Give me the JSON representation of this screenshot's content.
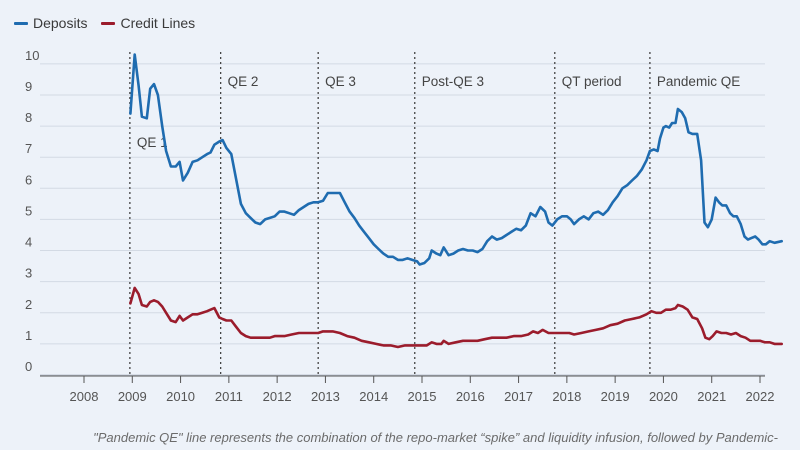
{
  "chart_data": {
    "type": "line",
    "title": "",
    "xlabel": "",
    "ylabel": "",
    "xlim": [
      2007.2,
      2022.2
    ],
    "ylim": [
      0,
      10.4
    ],
    "x_ticks": [
      2008,
      2009,
      2010,
      2011,
      2012,
      2013,
      2014,
      2015,
      2016,
      2017,
      2018,
      2019,
      2020,
      2021,
      2022
    ],
    "x_tick_labels": [
      "2008",
      "2009",
      "2010",
      "2011",
      "2012",
      "2013",
      "2014",
      "2015",
      "2016",
      "2017",
      "2018",
      "2019",
      "2020",
      "2021",
      "2022"
    ],
    "y_ticks": [
      0,
      1,
      2,
      3,
      4,
      5,
      6,
      7,
      8,
      9,
      10
    ],
    "y_tick_labels": [
      "0",
      "1",
      "2",
      "3",
      "4",
      "5",
      "6",
      "7",
      "8",
      "9",
      "10"
    ],
    "grid": "horizontal",
    "series": [
      {
        "name": "Deposits",
        "color": "#1f6cb0",
        "points": [
          [
            2008.96,
            8.4
          ],
          [
            2009.05,
            10.3
          ],
          [
            2009.13,
            9.3
          ],
          [
            2009.2,
            8.3
          ],
          [
            2009.3,
            8.25
          ],
          [
            2009.37,
            9.2
          ],
          [
            2009.45,
            9.35
          ],
          [
            2009.53,
            9.0
          ],
          [
            2009.62,
            8.0
          ],
          [
            2009.7,
            7.2
          ],
          [
            2009.8,
            6.7
          ],
          [
            2009.9,
            6.7
          ],
          [
            2009.98,
            6.85
          ],
          [
            2010.05,
            6.25
          ],
          [
            2010.15,
            6.5
          ],
          [
            2010.25,
            6.85
          ],
          [
            2010.35,
            6.9
          ],
          [
            2010.45,
            7.0
          ],
          [
            2010.55,
            7.1
          ],
          [
            2010.62,
            7.15
          ],
          [
            2010.7,
            7.4
          ],
          [
            2010.8,
            7.5
          ],
          [
            2010.87,
            7.55
          ],
          [
            2010.95,
            7.3
          ],
          [
            2011.05,
            7.1
          ],
          [
            2011.15,
            6.3
          ],
          [
            2011.25,
            5.5
          ],
          [
            2011.35,
            5.2
          ],
          [
            2011.45,
            5.05
          ],
          [
            2011.55,
            4.9
          ],
          [
            2011.65,
            4.85
          ],
          [
            2011.75,
            5.0
          ],
          [
            2011.85,
            5.05
          ],
          [
            2011.95,
            5.1
          ],
          [
            2012.05,
            5.25
          ],
          [
            2012.15,
            5.25
          ],
          [
            2012.25,
            5.2
          ],
          [
            2012.35,
            5.15
          ],
          [
            2012.45,
            5.3
          ],
          [
            2012.55,
            5.4
          ],
          [
            2012.65,
            5.5
          ],
          [
            2012.75,
            5.55
          ],
          [
            2012.85,
            5.55
          ],
          [
            2012.95,
            5.6
          ],
          [
            2013.05,
            5.85
          ],
          [
            2013.15,
            5.85
          ],
          [
            2013.3,
            5.85
          ],
          [
            2013.4,
            5.55
          ],
          [
            2013.5,
            5.25
          ],
          [
            2013.6,
            5.05
          ],
          [
            2013.7,
            4.8
          ],
          [
            2013.8,
            4.6
          ],
          [
            2013.9,
            4.4
          ],
          [
            2014.0,
            4.2
          ],
          [
            2014.1,
            4.05
          ],
          [
            2014.2,
            3.9
          ],
          [
            2014.3,
            3.8
          ],
          [
            2014.4,
            3.8
          ],
          [
            2014.5,
            3.7
          ],
          [
            2014.6,
            3.7
          ],
          [
            2014.7,
            3.75
          ],
          [
            2014.8,
            3.7
          ],
          [
            2014.9,
            3.65
          ],
          [
            2014.95,
            3.55
          ],
          [
            2015.05,
            3.6
          ],
          [
            2015.15,
            3.75
          ],
          [
            2015.2,
            4.0
          ],
          [
            2015.3,
            3.9
          ],
          [
            2015.38,
            3.85
          ],
          [
            2015.45,
            4.1
          ],
          [
            2015.55,
            3.85
          ],
          [
            2015.65,
            3.9
          ],
          [
            2015.75,
            4.0
          ],
          [
            2015.85,
            4.05
          ],
          [
            2015.95,
            4.0
          ],
          [
            2016.05,
            4.0
          ],
          [
            2016.15,
            3.95
          ],
          [
            2016.25,
            4.05
          ],
          [
            2016.35,
            4.3
          ],
          [
            2016.45,
            4.45
          ],
          [
            2016.55,
            4.35
          ],
          [
            2016.65,
            4.4
          ],
          [
            2016.75,
            4.5
          ],
          [
            2016.85,
            4.6
          ],
          [
            2016.95,
            4.7
          ],
          [
            2017.05,
            4.65
          ],
          [
            2017.15,
            4.8
          ],
          [
            2017.25,
            5.2
          ],
          [
            2017.35,
            5.1
          ],
          [
            2017.45,
            5.4
          ],
          [
            2017.55,
            5.25
          ],
          [
            2017.62,
            4.9
          ],
          [
            2017.7,
            4.8
          ],
          [
            2017.8,
            5.0
          ],
          [
            2017.9,
            5.1
          ],
          [
            2018.0,
            5.1
          ],
          [
            2018.08,
            5.0
          ],
          [
            2018.15,
            4.85
          ],
          [
            2018.25,
            5.0
          ],
          [
            2018.35,
            5.1
          ],
          [
            2018.45,
            5.0
          ],
          [
            2018.55,
            5.2
          ],
          [
            2018.65,
            5.25
          ],
          [
            2018.75,
            5.15
          ],
          [
            2018.85,
            5.3
          ],
          [
            2018.95,
            5.55
          ],
          [
            2019.05,
            5.75
          ],
          [
            2019.15,
            6.0
          ],
          [
            2019.25,
            6.1
          ],
          [
            2019.35,
            6.25
          ],
          [
            2019.45,
            6.4
          ],
          [
            2019.55,
            6.6
          ],
          [
            2019.65,
            6.9
          ],
          [
            2019.72,
            7.2
          ],
          [
            2019.8,
            7.25
          ],
          [
            2019.88,
            7.2
          ],
          [
            2019.93,
            7.6
          ],
          [
            2020.0,
            7.95
          ],
          [
            2020.05,
            8.0
          ],
          [
            2020.12,
            7.95
          ],
          [
            2020.18,
            8.1
          ],
          [
            2020.25,
            8.1
          ],
          [
            2020.3,
            8.55
          ],
          [
            2020.38,
            8.45
          ],
          [
            2020.45,
            8.25
          ],
          [
            2020.52,
            7.8
          ],
          [
            2020.6,
            7.75
          ],
          [
            2020.7,
            7.75
          ],
          [
            2020.78,
            6.9
          ],
          [
            2020.85,
            4.9
          ],
          [
            2020.92,
            4.75
          ],
          [
            2021.0,
            5.0
          ],
          [
            2021.08,
            5.7
          ],
          [
            2021.15,
            5.55
          ],
          [
            2021.22,
            5.45
          ],
          [
            2021.3,
            5.45
          ],
          [
            2021.38,
            5.2
          ],
          [
            2021.45,
            5.1
          ],
          [
            2021.52,
            5.1
          ],
          [
            2021.6,
            4.85
          ],
          [
            2021.68,
            4.45
          ],
          [
            2021.75,
            4.35
          ],
          [
            2021.82,
            4.4
          ],
          [
            2021.9,
            4.45
          ],
          [
            2021.97,
            4.35
          ],
          [
            2022.05,
            4.2
          ],
          [
            2022.12,
            4.2
          ],
          [
            2022.2,
            4.3
          ],
          [
            2022.3,
            4.25
          ],
          [
            2022.45,
            4.3
          ]
        ]
      },
      {
        "name": "Credit Lines",
        "color": "#9b1c2c",
        "points": [
          [
            2008.96,
            2.3
          ],
          [
            2009.05,
            2.8
          ],
          [
            2009.13,
            2.6
          ],
          [
            2009.2,
            2.25
          ],
          [
            2009.3,
            2.2
          ],
          [
            2009.37,
            2.35
          ],
          [
            2009.45,
            2.4
          ],
          [
            2009.53,
            2.35
          ],
          [
            2009.62,
            2.2
          ],
          [
            2009.7,
            2.0
          ],
          [
            2009.8,
            1.75
          ],
          [
            2009.9,
            1.7
          ],
          [
            2009.98,
            1.9
          ],
          [
            2010.05,
            1.75
          ],
          [
            2010.15,
            1.85
          ],
          [
            2010.25,
            1.95
          ],
          [
            2010.35,
            1.95
          ],
          [
            2010.45,
            2.0
          ],
          [
            2010.55,
            2.05
          ],
          [
            2010.62,
            2.1
          ],
          [
            2010.7,
            2.15
          ],
          [
            2010.8,
            1.85
          ],
          [
            2010.87,
            1.8
          ],
          [
            2010.95,
            1.75
          ],
          [
            2011.05,
            1.75
          ],
          [
            2011.15,
            1.55
          ],
          [
            2011.25,
            1.35
          ],
          [
            2011.35,
            1.25
          ],
          [
            2011.45,
            1.2
          ],
          [
            2011.55,
            1.2
          ],
          [
            2011.65,
            1.2
          ],
          [
            2011.75,
            1.2
          ],
          [
            2011.85,
            1.2
          ],
          [
            2011.95,
            1.25
          ],
          [
            2012.05,
            1.25
          ],
          [
            2012.15,
            1.25
          ],
          [
            2012.3,
            1.3
          ],
          [
            2012.45,
            1.35
          ],
          [
            2012.6,
            1.35
          ],
          [
            2012.75,
            1.35
          ],
          [
            2012.85,
            1.35
          ],
          [
            2012.95,
            1.4
          ],
          [
            2013.05,
            1.4
          ],
          [
            2013.15,
            1.4
          ],
          [
            2013.3,
            1.35
          ],
          [
            2013.45,
            1.25
          ],
          [
            2013.6,
            1.2
          ],
          [
            2013.75,
            1.1
          ],
          [
            2013.9,
            1.05
          ],
          [
            2014.05,
            1.0
          ],
          [
            2014.2,
            0.95
          ],
          [
            2014.35,
            0.95
          ],
          [
            2014.5,
            0.9
          ],
          [
            2014.65,
            0.95
          ],
          [
            2014.8,
            0.95
          ],
          [
            2014.95,
            0.95
          ],
          [
            2015.1,
            0.95
          ],
          [
            2015.2,
            1.05
          ],
          [
            2015.3,
            1.0
          ],
          [
            2015.4,
            1.0
          ],
          [
            2015.45,
            1.1
          ],
          [
            2015.55,
            1.0
          ],
          [
            2015.7,
            1.05
          ],
          [
            2015.85,
            1.1
          ],
          [
            2016.0,
            1.1
          ],
          [
            2016.15,
            1.1
          ],
          [
            2016.3,
            1.15
          ],
          [
            2016.45,
            1.2
          ],
          [
            2016.6,
            1.2
          ],
          [
            2016.75,
            1.2
          ],
          [
            2016.9,
            1.25
          ],
          [
            2017.05,
            1.25
          ],
          [
            2017.2,
            1.3
          ],
          [
            2017.3,
            1.4
          ],
          [
            2017.4,
            1.35
          ],
          [
            2017.5,
            1.45
          ],
          [
            2017.62,
            1.35
          ],
          [
            2017.75,
            1.35
          ],
          [
            2017.9,
            1.35
          ],
          [
            2018.05,
            1.35
          ],
          [
            2018.15,
            1.3
          ],
          [
            2018.3,
            1.35
          ],
          [
            2018.45,
            1.4
          ],
          [
            2018.6,
            1.45
          ],
          [
            2018.75,
            1.5
          ],
          [
            2018.9,
            1.6
          ],
          [
            2019.05,
            1.65
          ],
          [
            2019.2,
            1.75
          ],
          [
            2019.35,
            1.8
          ],
          [
            2019.5,
            1.85
          ],
          [
            2019.65,
            1.95
          ],
          [
            2019.75,
            2.05
          ],
          [
            2019.85,
            2.0
          ],
          [
            2019.95,
            2.0
          ],
          [
            2020.05,
            2.1
          ],
          [
            2020.15,
            2.1
          ],
          [
            2020.25,
            2.15
          ],
          [
            2020.3,
            2.25
          ],
          [
            2020.4,
            2.2
          ],
          [
            2020.5,
            2.1
          ],
          [
            2020.6,
            1.85
          ],
          [
            2020.7,
            1.8
          ],
          [
            2020.8,
            1.5
          ],
          [
            2020.87,
            1.2
          ],
          [
            2020.95,
            1.15
          ],
          [
            2021.02,
            1.25
          ],
          [
            2021.1,
            1.4
          ],
          [
            2021.2,
            1.35
          ],
          [
            2021.3,
            1.35
          ],
          [
            2021.4,
            1.3
          ],
          [
            2021.5,
            1.35
          ],
          [
            2021.6,
            1.25
          ],
          [
            2021.7,
            1.2
          ],
          [
            2021.8,
            1.1
          ],
          [
            2021.9,
            1.1
          ],
          [
            2022.0,
            1.1
          ],
          [
            2022.1,
            1.05
          ],
          [
            2022.2,
            1.05
          ],
          [
            2022.3,
            1.0
          ],
          [
            2022.45,
            1.0
          ]
        ]
      }
    ],
    "events": [
      {
        "label": "QE 1",
        "x": 2008.95
      },
      {
        "label": "QE 2",
        "x": 2010.83
      },
      {
        "label": "QE 3",
        "x": 2012.85
      },
      {
        "label": "Post-QE 3",
        "x": 2014.85
      },
      {
        "label": "QT period",
        "x": 2017.75
      },
      {
        "label": "Pandemic QE",
        "x": 2019.72
      }
    ]
  },
  "legend": {
    "items": [
      {
        "label": "Deposits",
        "color": "#1f6cb0"
      },
      {
        "label": "Credit Lines",
        "color": "#9b1c2c"
      }
    ]
  },
  "footnote": "\"Pandemic QE\" line represents the combination of the repo-market “spike” and liquidity infusion, followed by Pandemic-"
}
